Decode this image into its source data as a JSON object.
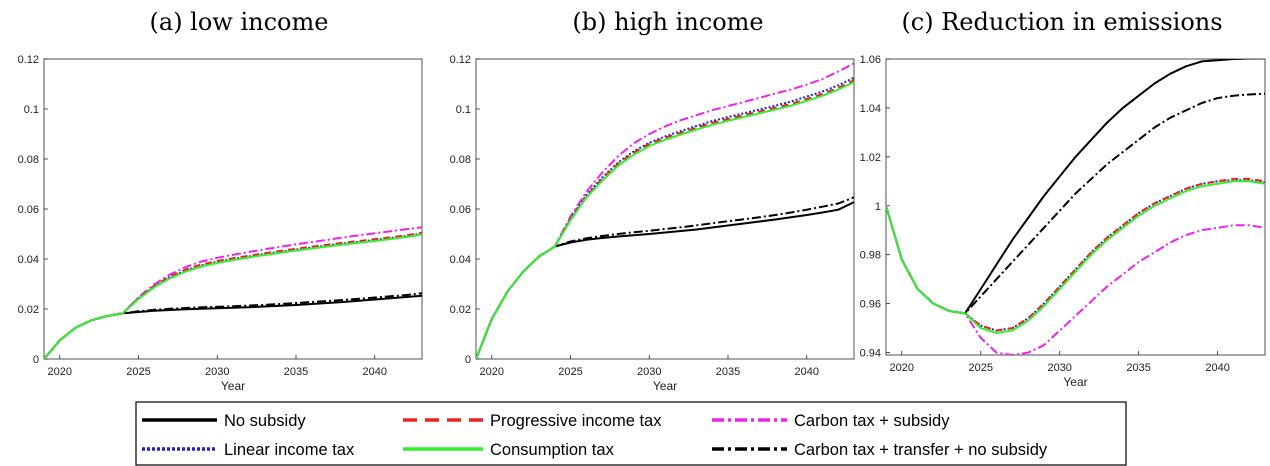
{
  "colors": {
    "no_subsidy": "#000000",
    "progressive": "#e8231f",
    "linear": "#1f24c9",
    "consumption": "#33ee33",
    "carbon_subsidy": "#ee22ee",
    "carbon_transfer": "#000000"
  },
  "legend": {
    "items": [
      "No subsidy",
      "Progressive income tax",
      "Carbon tax + subsidy",
      "Linear income tax",
      "Consumption tax",
      "Carbon tax + transfer + no subsidy"
    ]
  },
  "chart_data": [
    {
      "type": "line",
      "title": "(a) low income",
      "xlabel": "Year",
      "ylabel": "",
      "xlim": [
        2019,
        2043
      ],
      "ylim": [
        0,
        0.12
      ],
      "xticks": [
        2020,
        2025,
        2030,
        2035,
        2040
      ],
      "xtick_labels": [
        "2020",
        "2025",
        "2030",
        "2035",
        "2040"
      ],
      "yticks": [
        0,
        0.02,
        0.04,
        0.06,
        0.08,
        0.1,
        0.12
      ],
      "ytick_labels": [
        "0",
        "0.02",
        "0.04",
        "0.06",
        "0.08",
        "0.1",
        "0.12"
      ],
      "x": [
        2019,
        2020,
        2021,
        2022,
        2023,
        2024,
        2025,
        2026,
        2027,
        2028,
        2029,
        2030,
        2031,
        2032,
        2033,
        2034,
        2035,
        2036,
        2037,
        2038,
        2039,
        2040,
        2041,
        2042,
        2043
      ],
      "series": [
        {
          "name": "No subsidy",
          "values": [
            0,
            0.0075,
            0.0125,
            0.0155,
            0.0172,
            0.0183,
            0.0188,
            0.0193,
            0.0196,
            0.0199,
            0.0201,
            0.0203,
            0.0205,
            0.0207,
            0.021,
            0.0213,
            0.0216,
            0.022,
            0.0224,
            0.0228,
            0.0233,
            0.0238,
            0.0243,
            0.0248,
            0.0253
          ]
        },
        {
          "name": "Progressive income tax",
          "values": [
            0,
            0.0075,
            0.0125,
            0.0155,
            0.0172,
            0.0183,
            0.0244,
            0.0293,
            0.033,
            0.0358,
            0.0378,
            0.0392,
            0.0403,
            0.0413,
            0.0423,
            0.0432,
            0.0441,
            0.0449,
            0.0457,
            0.0465,
            0.0472,
            0.0479,
            0.0487,
            0.0495,
            0.0505
          ]
        },
        {
          "name": "Carbon tax + subsidy",
          "values": [
            0,
            0.0075,
            0.0125,
            0.0155,
            0.0172,
            0.0183,
            0.0247,
            0.0299,
            0.0338,
            0.0368,
            0.039,
            0.0405,
            0.0417,
            0.0428,
            0.0439,
            0.0449,
            0.0459,
            0.0468,
            0.0477,
            0.0486,
            0.0495,
            0.0503,
            0.0511,
            0.0519,
            0.0527
          ]
        },
        {
          "name": "Linear income tax",
          "values": [
            0,
            0.0075,
            0.0125,
            0.0155,
            0.0172,
            0.0183,
            0.0243,
            0.0291,
            0.0328,
            0.0355,
            0.0375,
            0.0389,
            0.04,
            0.041,
            0.042,
            0.0429,
            0.0438,
            0.0446,
            0.0454,
            0.0462,
            0.0469,
            0.0476,
            0.0484,
            0.0492,
            0.0502
          ]
        },
        {
          "name": "Consumption tax",
          "values": [
            0,
            0.0075,
            0.0125,
            0.0155,
            0.0172,
            0.0183,
            0.024,
            0.0287,
            0.0323,
            0.035,
            0.037,
            0.0384,
            0.0396,
            0.0406,
            0.0416,
            0.0425,
            0.0434,
            0.0442,
            0.045,
            0.0458,
            0.0465,
            0.0472,
            0.048,
            0.0488,
            0.0498
          ]
        },
        {
          "name": "Carbon tax + transfer + no subsidy",
          "values": [
            0,
            0.0075,
            0.0125,
            0.0155,
            0.0172,
            0.0183,
            0.0191,
            0.0197,
            0.0201,
            0.0204,
            0.0207,
            0.0209,
            0.0211,
            0.0214,
            0.0217,
            0.022,
            0.0224,
            0.0228,
            0.0232,
            0.0236,
            0.0241,
            0.0246,
            0.0251,
            0.0256,
            0.0263
          ]
        }
      ]
    },
    {
      "type": "line",
      "title": "(b) high income",
      "xlabel": "Year",
      "ylabel": "",
      "xlim": [
        2019,
        2043
      ],
      "ylim": [
        0,
        0.12
      ],
      "xticks": [
        2020,
        2025,
        2030,
        2035,
        2040
      ],
      "xtick_labels": [
        "2020",
        "2025",
        "2030",
        "2035",
        "2040"
      ],
      "yticks": [
        0,
        0.02,
        0.04,
        0.06,
        0.08,
        0.1,
        0.12
      ],
      "ytick_labels": [
        "0",
        "0.02",
        "0.04",
        "0.06",
        "0.08",
        "0.1",
        "0.12"
      ],
      "x": [
        2019,
        2020,
        2021,
        2022,
        2023,
        2024,
        2025,
        2026,
        2027,
        2028,
        2029,
        2030,
        2031,
        2032,
        2033,
        2034,
        2035,
        2036,
        2037,
        2038,
        2039,
        2040,
        2041,
        2042,
        2043
      ],
      "series": [
        {
          "name": "No subsidy",
          "values": [
            0,
            0.016,
            0.027,
            0.035,
            0.041,
            0.045,
            0.0466,
            0.0477,
            0.0484,
            0.049,
            0.0495,
            0.05,
            0.0506,
            0.0512,
            0.0518,
            0.0526,
            0.0534,
            0.0542,
            0.055,
            0.0558,
            0.0567,
            0.0576,
            0.0586,
            0.0597,
            0.0627
          ]
        },
        {
          "name": "Progressive income tax",
          "values": [
            0,
            0.016,
            0.027,
            0.035,
            0.041,
            0.045,
            0.056,
            0.065,
            0.072,
            0.078,
            0.0825,
            0.086,
            0.0885,
            0.0905,
            0.0925,
            0.0945,
            0.096,
            0.0975,
            0.099,
            0.1005,
            0.102,
            0.104,
            0.106,
            0.1085,
            0.1115
          ]
        },
        {
          "name": "Carbon tax + subsidy",
          "values": [
            0,
            0.016,
            0.027,
            0.035,
            0.041,
            0.045,
            0.057,
            0.0668,
            0.0745,
            0.081,
            0.0862,
            0.09,
            0.093,
            0.0955,
            0.0975,
            0.0995,
            0.1012,
            0.1028,
            0.1045,
            0.1062,
            0.1078,
            0.1098,
            0.112,
            0.115,
            0.1183
          ]
        },
        {
          "name": "Linear income tax",
          "values": [
            0,
            0.016,
            0.027,
            0.035,
            0.041,
            0.045,
            0.0562,
            0.0655,
            0.0725,
            0.0785,
            0.083,
            0.0865,
            0.089,
            0.0912,
            0.0932,
            0.0952,
            0.0968,
            0.0983,
            0.0998,
            0.1013,
            0.103,
            0.105,
            0.107,
            0.1095,
            0.1125
          ]
        },
        {
          "name": "Consumption tax",
          "values": [
            0,
            0.016,
            0.027,
            0.035,
            0.041,
            0.045,
            0.0555,
            0.0645,
            0.0712,
            0.0772,
            0.0817,
            0.0852,
            0.0877,
            0.0898,
            0.0918,
            0.0937,
            0.0953,
            0.0968,
            0.0983,
            0.0998,
            0.1013,
            0.1033,
            0.1053,
            0.1078,
            0.1108
          ]
        },
        {
          "name": "Carbon tax + transfer + no subsidy",
          "values": [
            0,
            0.016,
            0.027,
            0.035,
            0.041,
            0.045,
            0.047,
            0.0483,
            0.0492,
            0.05,
            0.0507,
            0.0513,
            0.052,
            0.0527,
            0.0535,
            0.0543,
            0.0551,
            0.0559,
            0.0567,
            0.0576,
            0.0586,
            0.0597,
            0.0609,
            0.0622,
            0.0647
          ]
        }
      ]
    },
    {
      "type": "line",
      "title": "(c) Reduction in emissions",
      "xlabel": "Year",
      "ylabel": "",
      "xlim": [
        2019,
        2043
      ],
      "ylim": [
        0.939,
        1.06
      ],
      "xticks": [
        2020,
        2025,
        2030,
        2035,
        2040
      ],
      "xtick_labels": [
        "2020",
        "2025",
        "2030",
        "2035",
        "2040"
      ],
      "yticks": [
        0.94,
        0.96,
        0.98,
        1,
        1.02,
        1.04,
        1.06
      ],
      "ytick_labels": [
        "0.94",
        "0.96",
        "0.98",
        "1",
        "1.02",
        "1.04",
        "1.06"
      ],
      "x": [
        2019,
        2020,
        2021,
        2022,
        2023,
        2024,
        2025,
        2026,
        2027,
        2028,
        2029,
        2030,
        2031,
        2032,
        2033,
        2034,
        2035,
        2036,
        2037,
        2038,
        2039,
        2040,
        2041,
        2042,
        2043
      ],
      "series": [
        {
          "name": "No subsidy",
          "values": [
            1.0,
            0.978,
            0.966,
            0.96,
            0.957,
            0.956,
            0.966,
            0.976,
            0.986,
            0.995,
            1.004,
            1.012,
            1.02,
            1.027,
            1.034,
            1.04,
            1.045,
            1.05,
            1.054,
            1.057,
            1.059,
            1.0595,
            1.06,
            1.0602,
            1.0603
          ]
        },
        {
          "name": "Progressive income tax",
          "values": [
            1.0,
            0.978,
            0.966,
            0.96,
            0.957,
            0.956,
            0.951,
            0.949,
            0.95,
            0.954,
            0.96,
            0.967,
            0.974,
            0.981,
            0.987,
            0.992,
            0.997,
            1.001,
            1.004,
            1.007,
            1.009,
            1.01,
            1.011,
            1.011,
            1.01
          ]
        },
        {
          "name": "Carbon tax + subsidy",
          "values": [
            1.0,
            0.978,
            0.966,
            0.96,
            0.957,
            0.956,
            0.946,
            0.94,
            0.939,
            0.94,
            0.943,
            0.949,
            0.955,
            0.961,
            0.967,
            0.972,
            0.977,
            0.981,
            0.985,
            0.988,
            0.99,
            0.991,
            0.992,
            0.992,
            0.991
          ]
        },
        {
          "name": "Linear income tax",
          "values": [
            1.0,
            0.978,
            0.966,
            0.96,
            0.957,
            0.956,
            0.951,
            0.949,
            0.95,
            0.954,
            0.96,
            0.967,
            0.974,
            0.981,
            0.987,
            0.992,
            0.997,
            1.001,
            1.004,
            1.007,
            1.009,
            1.01,
            1.0105,
            1.0105,
            1.0095
          ]
        },
        {
          "name": "Consumption tax",
          "values": [
            1.0,
            0.978,
            0.966,
            0.96,
            0.957,
            0.956,
            0.95,
            0.948,
            0.949,
            0.953,
            0.959,
            0.966,
            0.973,
            0.98,
            0.986,
            0.991,
            0.996,
            1.0,
            1.003,
            1.006,
            1.008,
            1.009,
            1.01,
            1.01,
            1.009
          ]
        },
        {
          "name": "Carbon tax + transfer + no subsidy",
          "values": [
            1.0,
            0.978,
            0.966,
            0.96,
            0.957,
            0.956,
            0.963,
            0.97,
            0.977,
            0.984,
            0.991,
            0.998,
            1.005,
            1.011,
            1.017,
            1.022,
            1.027,
            1.032,
            1.036,
            1.039,
            1.042,
            1.044,
            1.045,
            1.0455,
            1.0458
          ]
        }
      ]
    }
  ]
}
